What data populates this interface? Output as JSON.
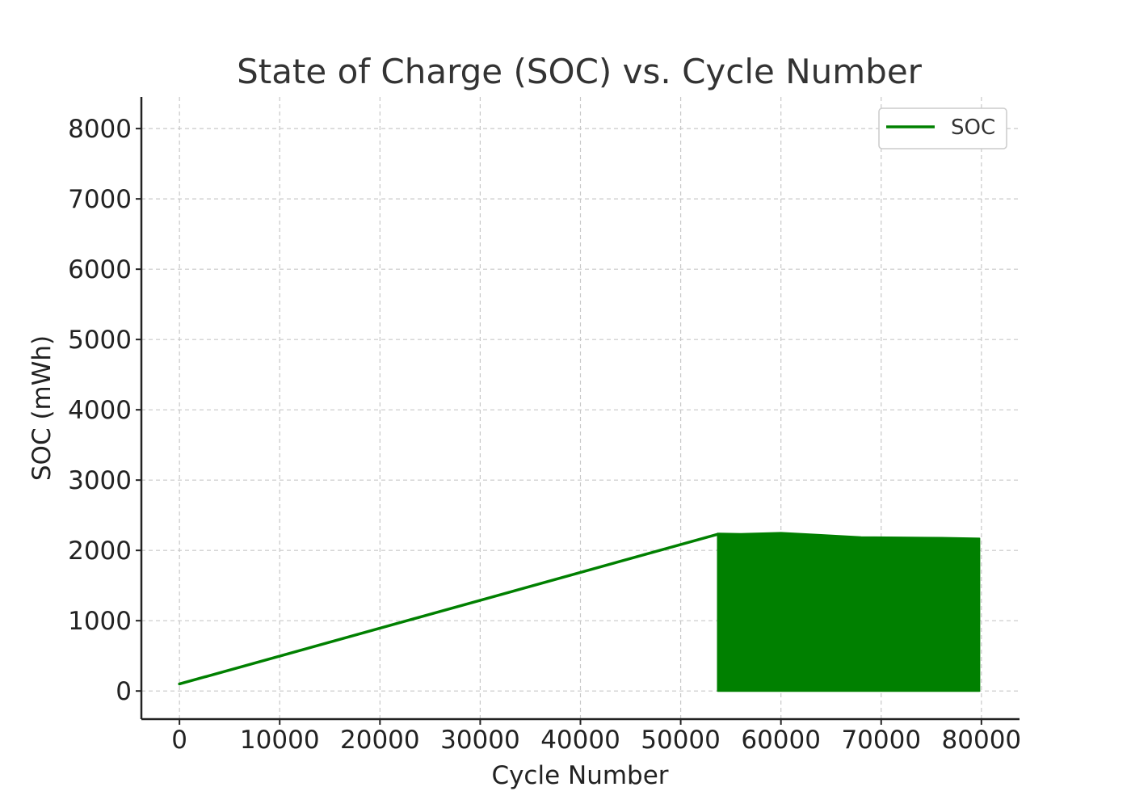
{
  "chart_data": {
    "type": "line",
    "title": "State of Charge (SOC) vs. Cycle Number",
    "xlabel": "Cycle Number",
    "ylabel": "SOC (mWh)",
    "xlim": [
      -3800,
      83800
    ],
    "ylim": [
      -400,
      8450
    ],
    "xticks": [
      0,
      10000,
      20000,
      30000,
      40000,
      50000,
      60000,
      70000,
      80000
    ],
    "yticks": [
      0,
      1000,
      2000,
      3000,
      4000,
      5000,
      6000,
      7000,
      8000
    ],
    "grid": true,
    "legend_position": "top-right",
    "color": "#008000",
    "series": [
      {
        "name": "SOC",
        "ramp": {
          "x": [
            0,
            53700
          ],
          "y": [
            100,
            2230
          ]
        },
        "oscillating_band": {
          "x_start": 53700,
          "x_end": 79800,
          "min": 0,
          "max_envelope": [
            [
              53700,
              2240
            ],
            [
              56000,
              2235
            ],
            [
              60000,
              2250
            ],
            [
              64000,
              2220
            ],
            [
              68000,
              2190
            ],
            [
              72000,
              2185
            ],
            [
              76000,
              2180
            ],
            [
              79800,
              2170
            ]
          ]
        }
      }
    ]
  }
}
